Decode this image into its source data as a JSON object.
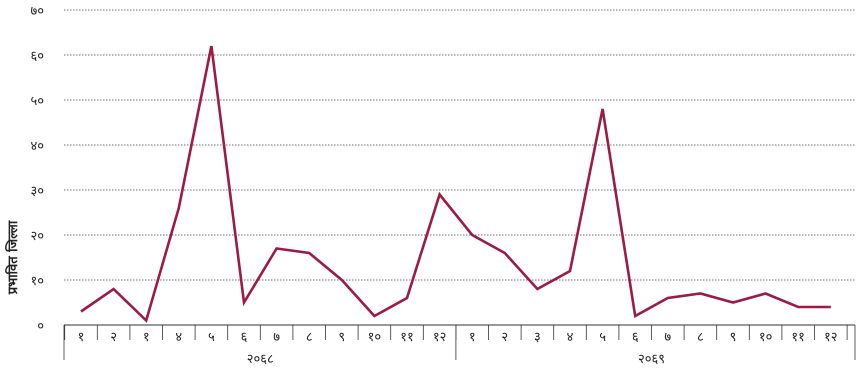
{
  "chart_data": {
    "type": "line",
    "title": "",
    "xlabel": "",
    "ylabel": "प्रभावित जिल्ला",
    "ylim": [
      0,
      70
    ],
    "y_ticks": [
      {
        "value": 0,
        "label": "०"
      },
      {
        "value": 10,
        "label": "१०"
      },
      {
        "value": 20,
        "label": "२०"
      },
      {
        "value": 30,
        "label": "३०"
      },
      {
        "value": 40,
        "label": "४०"
      },
      {
        "value": 50,
        "label": "५०"
      },
      {
        "value": 60,
        "label": "६०"
      },
      {
        "value": 70,
        "label": "७०"
      }
    ],
    "grid": true,
    "legend": "none",
    "line_color": "#9b1b43",
    "categories": [
      "१",
      "२",
      "१",
      "४",
      "५",
      "६",
      "७",
      "८",
      "९",
      "१०",
      "११",
      "१२",
      "१",
      "२",
      "३",
      "४",
      "५",
      "६",
      "७",
      "८",
      "९",
      "१०",
      "११",
      "१२"
    ],
    "groups": [
      {
        "label": "२०६८",
        "count": 12
      },
      {
        "label": "२०६९",
        "count": 12
      }
    ],
    "series": [
      {
        "values": [
          3,
          8,
          1,
          26,
          62,
          5,
          17,
          16,
          10,
          2,
          6,
          29,
          20,
          16,
          8,
          12,
          48,
          2,
          6,
          7,
          5,
          7,
          4,
          4
        ]
      }
    ]
  }
}
